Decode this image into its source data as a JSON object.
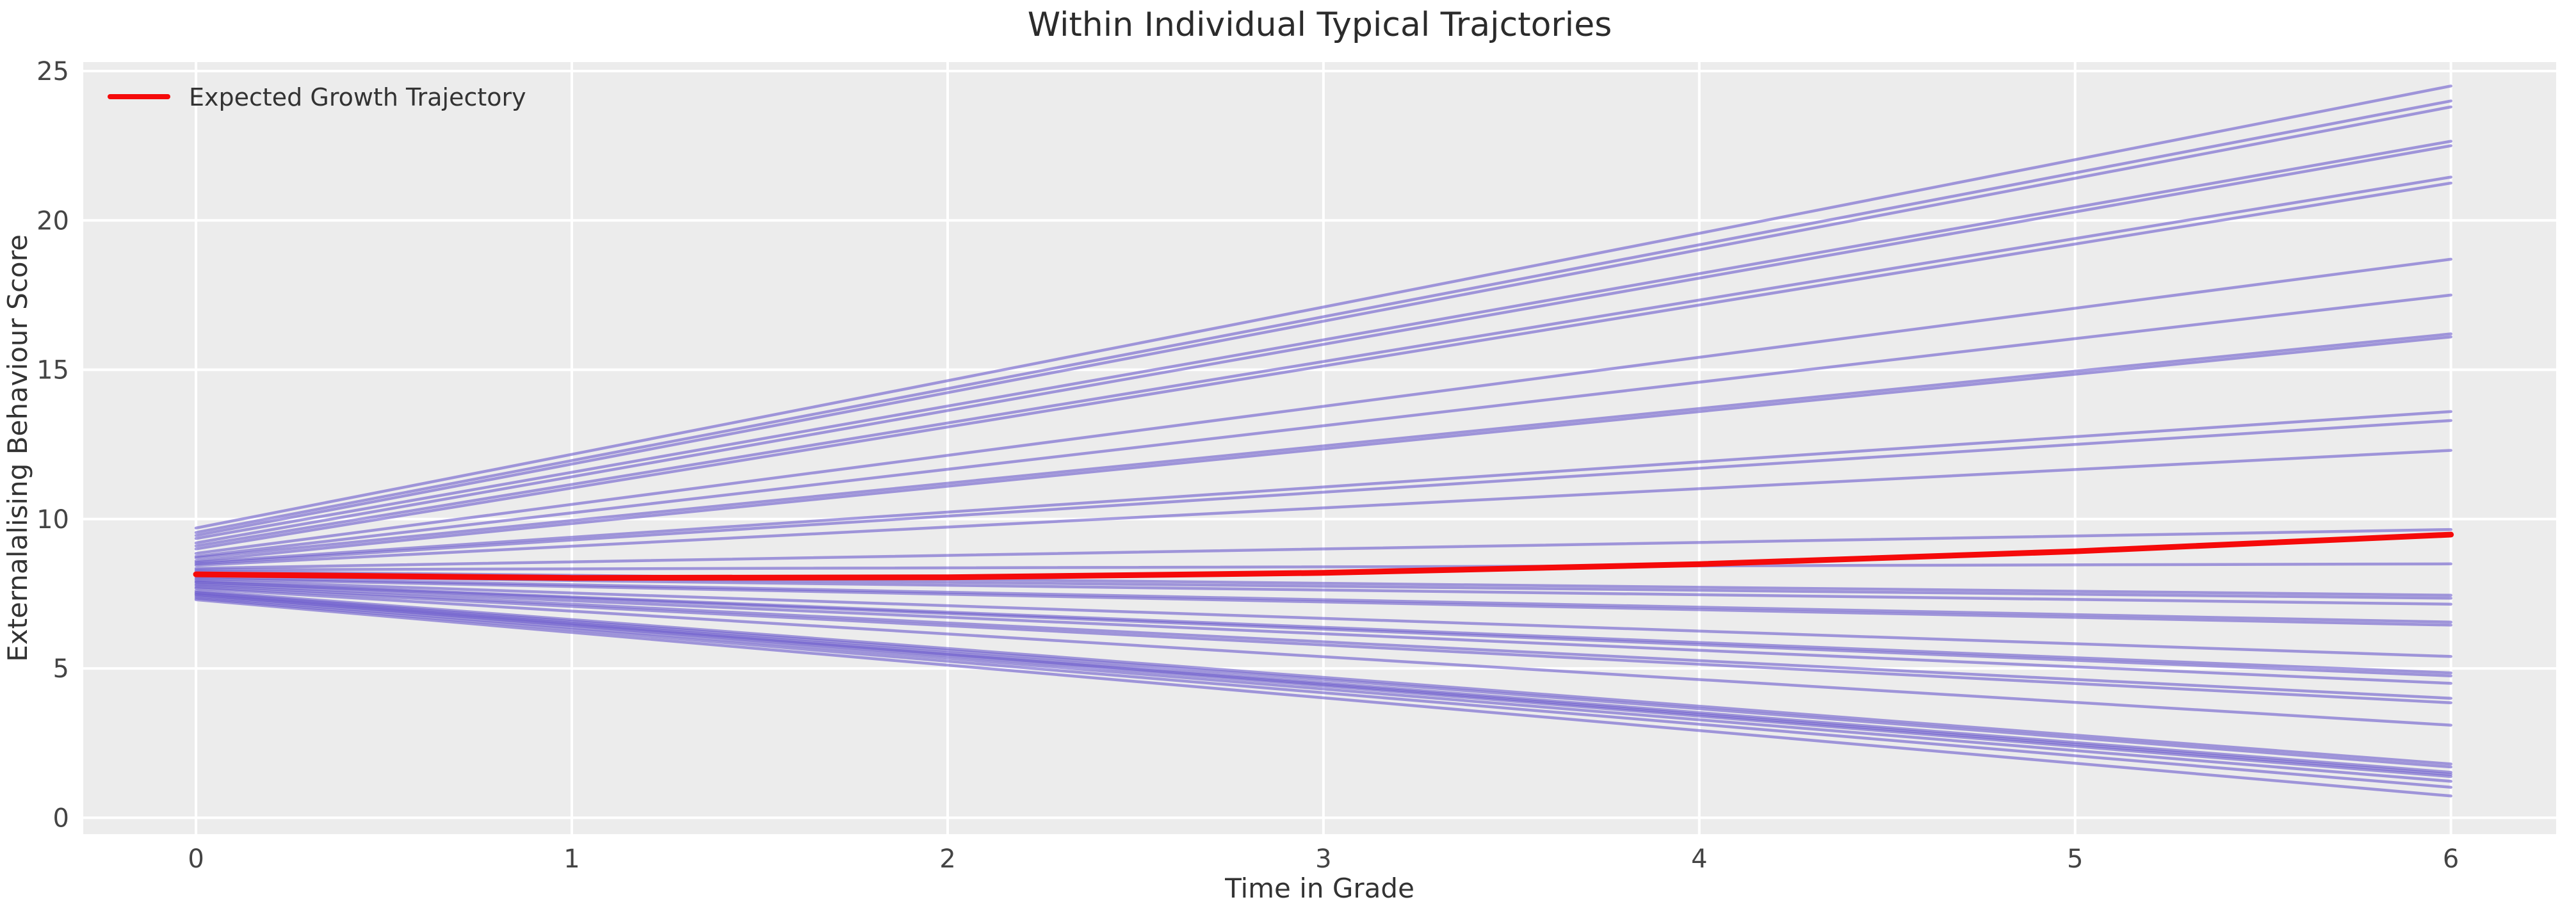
{
  "chart_data": {
    "type": "line",
    "title": "Within Individual Typical Trajctories",
    "xlabel": "Time in Grade",
    "ylabel": "Externalalising Behaviour Score",
    "x_ticks": [
      0,
      1,
      2,
      3,
      4,
      5,
      6
    ],
    "y_ticks": [
      0,
      5,
      10,
      15,
      20,
      25
    ],
    "xlim": [
      -0.3,
      6.28
    ],
    "ylim": [
      -0.55,
      25.3
    ],
    "grid": true,
    "plot_background": "#ececec",
    "gridline_color": "#ffffff",
    "tick_label_color": "#444444",
    "title_color": "#2b2b2b",
    "axis_label_color": "#333333",
    "legend": {
      "position": "upper left",
      "entries": [
        {
          "label": "Expected Growth Trajectory",
          "color": "#f50a0a"
        }
      ]
    },
    "expected_trajectory": {
      "name": "Expected Growth Trajectory",
      "color": "#f50a0a",
      "line_width": 9,
      "x": [
        0,
        1,
        2,
        3,
        4,
        5,
        6
      ],
      "y": [
        8.15,
        8.03,
        8.05,
        8.2,
        8.49,
        8.92,
        9.48
      ]
    },
    "individual_trajectories": {
      "name": "Within-individual typical trajectories",
      "color": "#6a5acd",
      "opacity": 0.6,
      "line_width": 4.5,
      "x_span": [
        0,
        6
      ],
      "lines": [
        [
          9.7,
          24.5
        ],
        [
          9.55,
          24.0
        ],
        [
          9.45,
          23.8
        ],
        [
          9.35,
          22.65
        ],
        [
          9.2,
          22.5
        ],
        [
          9.1,
          21.45
        ],
        [
          9.0,
          21.25
        ],
        [
          8.85,
          18.7
        ],
        [
          8.75,
          17.5
        ],
        [
          8.7,
          16.2
        ],
        [
          8.6,
          16.1
        ],
        [
          8.55,
          13.6
        ],
        [
          8.5,
          13.3
        ],
        [
          8.45,
          12.3
        ],
        [
          8.35,
          9.65
        ],
        [
          8.3,
          8.5
        ],
        [
          8.25,
          7.45
        ],
        [
          8.15,
          7.35
        ],
        [
          8.1,
          7.15
        ],
        [
          8.05,
          6.55
        ],
        [
          8.0,
          6.45
        ],
        [
          7.95,
          5.4
        ],
        [
          7.9,
          4.85
        ],
        [
          7.88,
          4.75
        ],
        [
          7.82,
          4.5
        ],
        [
          7.78,
          4.0
        ],
        [
          7.72,
          3.85
        ],
        [
          7.68,
          3.1
        ],
        [
          7.6,
          1.8
        ],
        [
          7.55,
          1.7
        ],
        [
          7.52,
          1.52
        ],
        [
          7.48,
          1.45
        ],
        [
          7.45,
          1.38
        ],
        [
          7.4,
          1.22
        ],
        [
          7.35,
          1.02
        ],
        [
          7.3,
          0.73
        ]
      ]
    }
  }
}
